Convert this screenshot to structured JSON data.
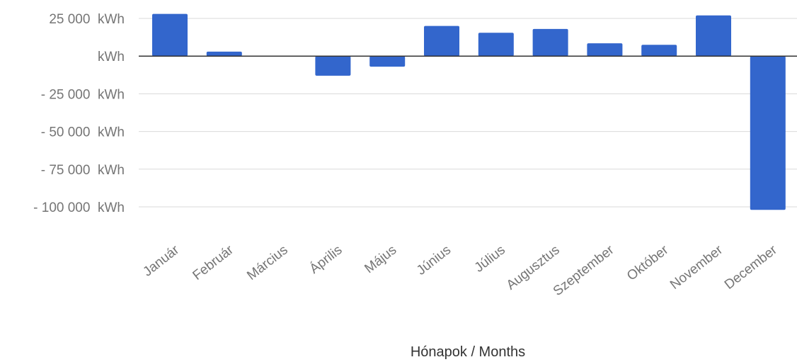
{
  "chart_data": {
    "type": "bar",
    "title": "",
    "xlabel": "Hónapok / Months",
    "ylabel": "",
    "unit": "kWh",
    "categories": [
      "Január",
      "Február",
      "Március",
      "Április",
      "Május",
      "Június",
      "Július",
      "Augusztus",
      "Szeptember",
      "Október",
      "November",
      "December"
    ],
    "values": [
      28000,
      3000,
      300,
      -13000,
      -7000,
      20000,
      15500,
      18000,
      8500,
      7500,
      27000,
      -102000
    ],
    "ylim": [
      -112000,
      30000
    ],
    "yticks": [
      {
        "value": 25000,
        "label": "25 000  kWh"
      },
      {
        "value": 0,
        "label": "kWh"
      },
      {
        "value": -25000,
        "label": "- 25 000  kWh"
      },
      {
        "value": -50000,
        "label": "- 50 000  kWh"
      },
      {
        "value": -75000,
        "label": "- 75 000  kWh"
      },
      {
        "value": -100000,
        "label": "- 100 000  kWh"
      }
    ],
    "grid": true,
    "legend": "none",
    "bar_color": "#3366cc"
  }
}
